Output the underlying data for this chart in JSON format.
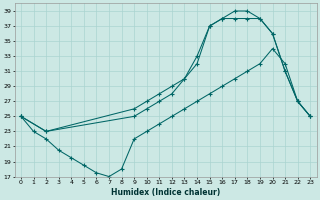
{
  "title": "",
  "xlabel": "Humidex (Indice chaleur)",
  "bg_color": "#cce8e4",
  "grid_color": "#aad4d0",
  "line_color": "#006666",
  "xlim": [
    -0.5,
    23.5
  ],
  "ylim": [
    17,
    40
  ],
  "xticks": [
    0,
    1,
    2,
    3,
    4,
    5,
    6,
    7,
    8,
    9,
    10,
    11,
    12,
    13,
    14,
    15,
    16,
    17,
    18,
    19,
    20,
    21,
    22,
    23
  ],
  "yticks": [
    17,
    19,
    21,
    23,
    25,
    27,
    29,
    31,
    33,
    35,
    37,
    39
  ],
  "line1_x": [
    0,
    1,
    2,
    3,
    4,
    5,
    6,
    7,
    8,
    9,
    10,
    11,
    12,
    13,
    14,
    15,
    16,
    17,
    18,
    19,
    20,
    21,
    22,
    23
  ],
  "line1_y": [
    25,
    23,
    22,
    20.5,
    19.5,
    18.5,
    17.5,
    17,
    18,
    22,
    23,
    24,
    25,
    26,
    27,
    28,
    29,
    30,
    31,
    32,
    34,
    32,
    27,
    25
  ],
  "line2_x": [
    0,
    2,
    9,
    10,
    11,
    12,
    13,
    14,
    15,
    16,
    17,
    18,
    19,
    20,
    21,
    22,
    23
  ],
  "line2_y": [
    25,
    23,
    26,
    27,
    28,
    29,
    30,
    32,
    37,
    38,
    39,
    39,
    38,
    36,
    31,
    27,
    25
  ],
  "line3_x": [
    0,
    2,
    9,
    10,
    11,
    12,
    13,
    14,
    15,
    16,
    17,
    18,
    19,
    20,
    21,
    22,
    23
  ],
  "line3_y": [
    25,
    23,
    25,
    26,
    27,
    28,
    30,
    33,
    37,
    38,
    38,
    38,
    38,
    36,
    31,
    27,
    25
  ]
}
